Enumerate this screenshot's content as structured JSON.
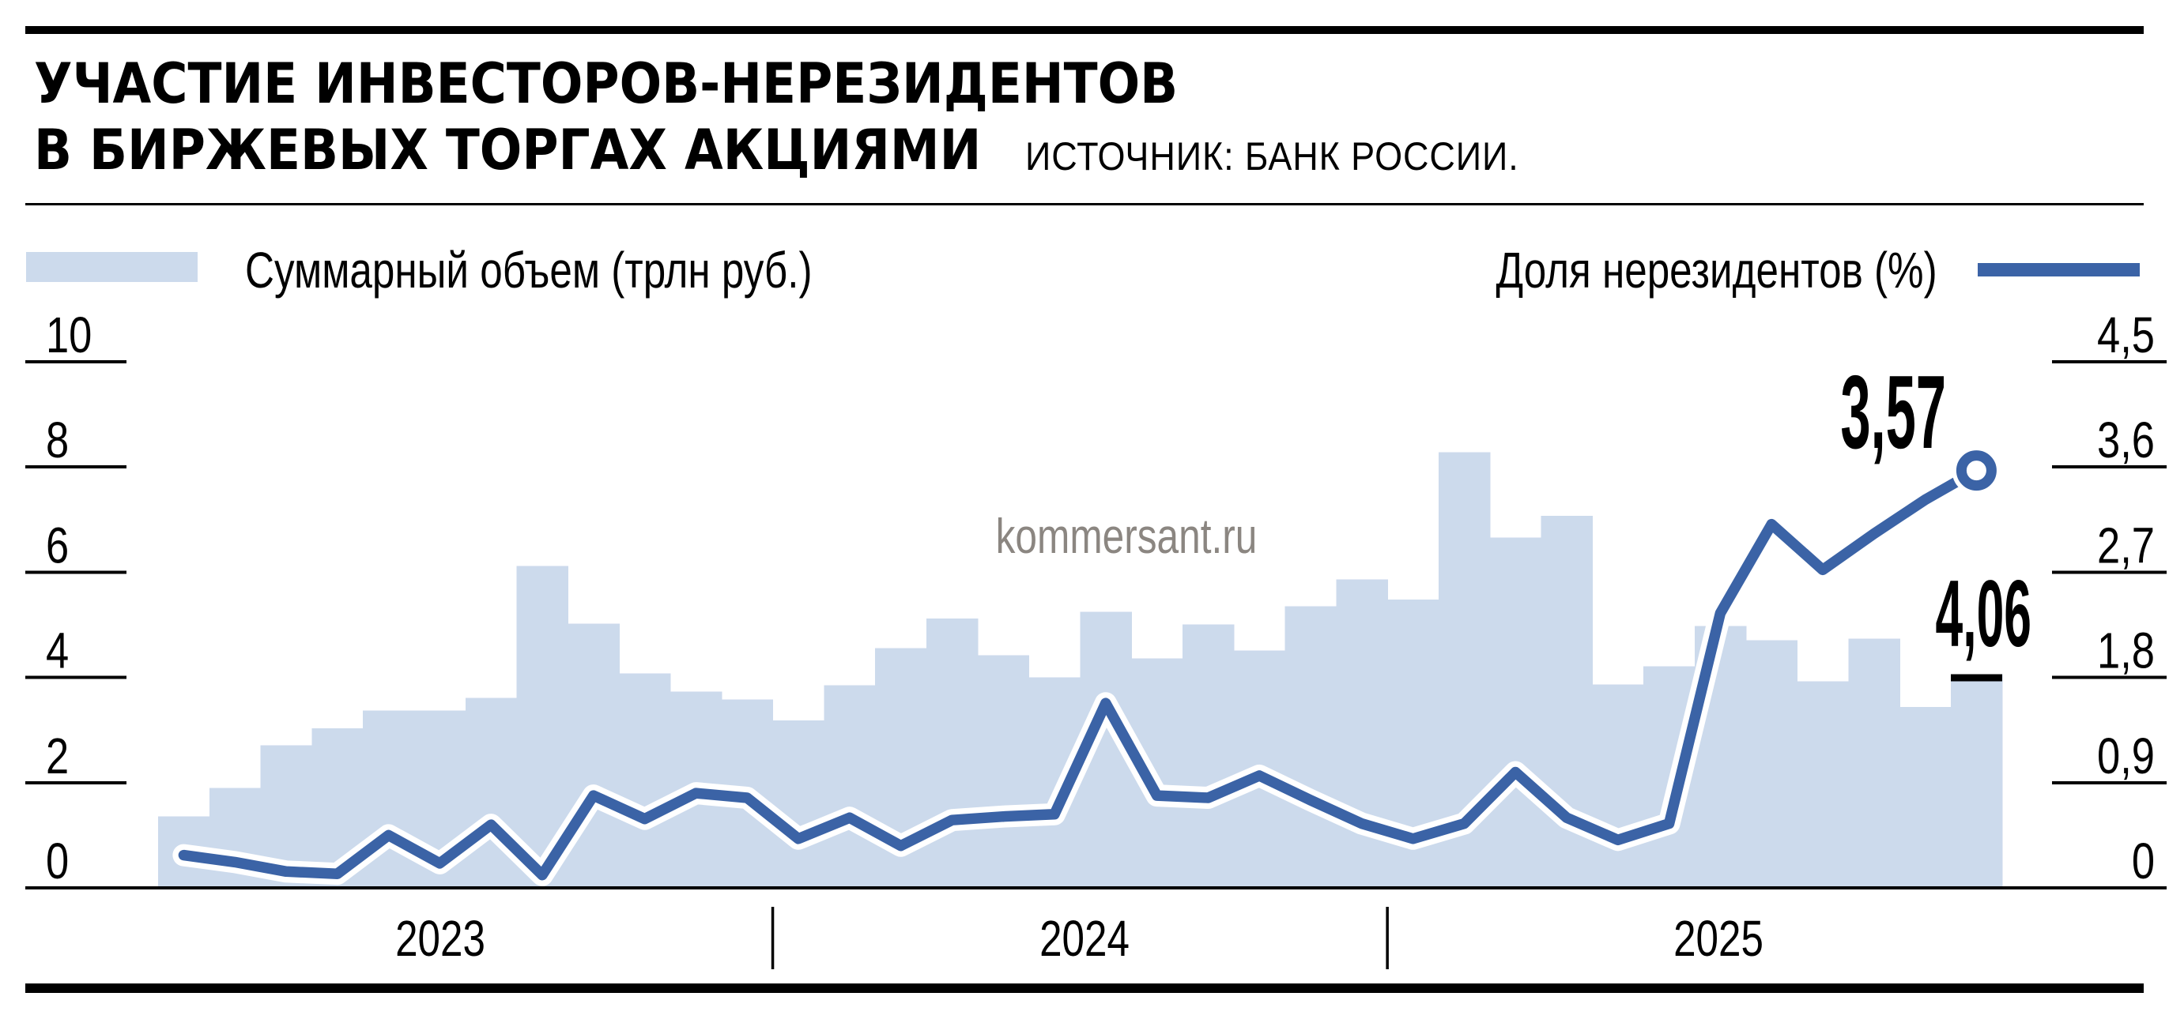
{
  "header": {
    "title_line1": "УЧАСТИЕ ИНВЕСТОРОВ-НЕРЕЗИДЕНТОВ",
    "title_line2": "В БИРЖЕВЫХ ТОРГАХ АКЦИЯМИ",
    "source": "ИСТОЧНИК: БАНК РОССИИ."
  },
  "legend": {
    "bars_label": "Суммарный объем (трлн руб.)",
    "line_label": "Доля нерезидентов (%)"
  },
  "watermark": "kommersant.ru",
  "colors": {
    "bar_fill": "#ccdaec",
    "line": "#3b63a6",
    "axis": "#000000",
    "watermark": "#8b8681"
  },
  "chart_data": {
    "type": "bar+line",
    "bars_series_name": "Суммарный объем (трлн руб.)",
    "line_series_name": "Доля нерезидентов (%)",
    "x_groups": [
      {
        "label": "2023",
        "months": 12
      },
      {
        "label": "2024",
        "months": 12
      },
      {
        "label": "2025",
        "months": 12
      }
    ],
    "left_axis": {
      "ticks": [
        0,
        2,
        4,
        6,
        8,
        10
      ],
      "max": 10
    },
    "right_axis": {
      "tick_labels": [
        "0",
        "0,9",
        "1,8",
        "2,7",
        "3,6",
        "4,5"
      ],
      "tick_values": [
        0,
        0.9,
        1.8,
        2.7,
        3.6,
        4.5
      ],
      "max": 4.5
    },
    "bars": [
      1.36,
      1.9,
      2.71,
      3.03,
      3.37,
      3.37,
      3.61,
      6.12,
      5.02,
      4.08,
      3.73,
      3.58,
      3.18,
      3.85,
      4.56,
      5.12,
      4.42,
      4.0,
      5.25,
      4.36,
      5.01,
      4.51,
      5.35,
      5.86,
      5.48,
      8.28,
      6.66,
      7.07,
      3.87,
      4.21,
      4.98,
      4.71,
      3.93,
      4.74,
      3.44,
      4.06
    ],
    "line": [
      0.28,
      0.22,
      0.14,
      0.12,
      0.45,
      0.21,
      0.54,
      0.11,
      0.79,
      0.59,
      0.81,
      0.77,
      0.42,
      0.6,
      0.36,
      0.58,
      0.61,
      0.63,
      1.58,
      0.79,
      0.77,
      0.96,
      0.75,
      0.55,
      0.42,
      0.55,
      0.99,
      0.6,
      0.41,
      0.55,
      2.35,
      3.11,
      2.72,
      3.03,
      3.32,
      3.57
    ],
    "annotations": {
      "last_line_value": "3,57",
      "last_bar_value": "4,06"
    }
  }
}
